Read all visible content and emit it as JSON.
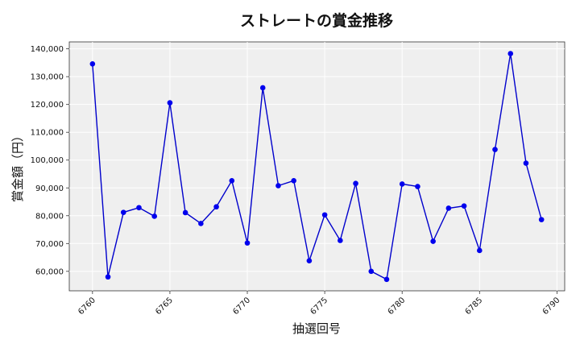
{
  "chart_data": {
    "type": "line",
    "title": "ストレートの賞金推移",
    "xlabel": "抽選回号",
    "ylabel": "賞金額（円）",
    "xlim": [
      6758.5,
      6790.5
    ],
    "ylim": [
      53000,
      142500
    ],
    "xticks": [
      6760,
      6765,
      6770,
      6775,
      6780,
      6785,
      6790
    ],
    "yticks": [
      60000,
      70000,
      80000,
      90000,
      100000,
      110000,
      120000,
      130000,
      140000
    ],
    "ytick_labels": [
      "60,000",
      "70,000",
      "80,000",
      "90,000",
      "100,000",
      "110,000",
      "120,000",
      "130,000",
      "140,000"
    ],
    "grid": true,
    "legend": "none",
    "colors": {
      "line": "#0000cc",
      "marker": "#0000ee",
      "plot_bg": "#efefef",
      "grid": "#ffffff"
    },
    "series": [
      {
        "x": [
          6760,
          6761,
          6762,
          6763,
          6764,
          6765,
          6766,
          6767,
          6768,
          6769,
          6770,
          6771,
          6772,
          6773,
          6774,
          6775,
          6776,
          6777,
          6778,
          6779,
          6780,
          6781,
          6782,
          6783,
          6784,
          6785,
          6786,
          6787,
          6788,
          6789
        ],
        "values": [
          134600,
          58000,
          81200,
          82900,
          79800,
          120600,
          81100,
          77200,
          83200,
          92600,
          70200,
          126000,
          90800,
          92600,
          63800,
          80300,
          71100,
          91600,
          60000,
          57100,
          91400,
          90500,
          70800,
          82700,
          83500,
          67500,
          103800,
          138300,
          98900,
          78600
        ]
      }
    ]
  }
}
